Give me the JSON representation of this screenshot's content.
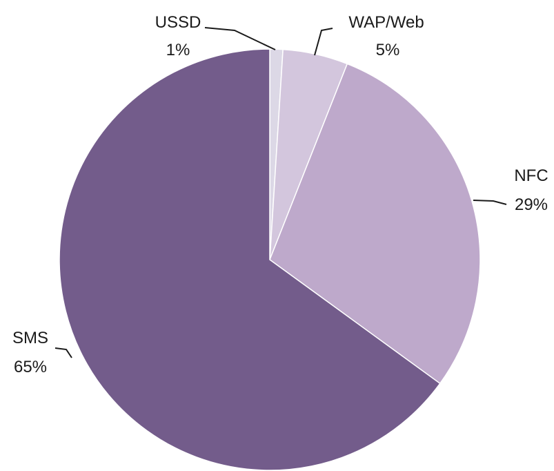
{
  "chart_data": {
    "type": "pie",
    "title": "",
    "slices": [
      {
        "label": "USSD",
        "value": 1,
        "value_label": "1%",
        "color": "#dcd8e6"
      },
      {
        "label": "WAP/Web",
        "value": 5,
        "value_label": "5%",
        "color": "#d3c6dd"
      },
      {
        "label": "NFC",
        "value": 29,
        "value_label": "29%",
        "color": "#bea9cb"
      },
      {
        "label": "SMS",
        "value": 65,
        "value_label": "65%",
        "color": "#735c8b"
      }
    ],
    "start": "12 o'clock",
    "direction": "clockwise",
    "legend": "none"
  }
}
